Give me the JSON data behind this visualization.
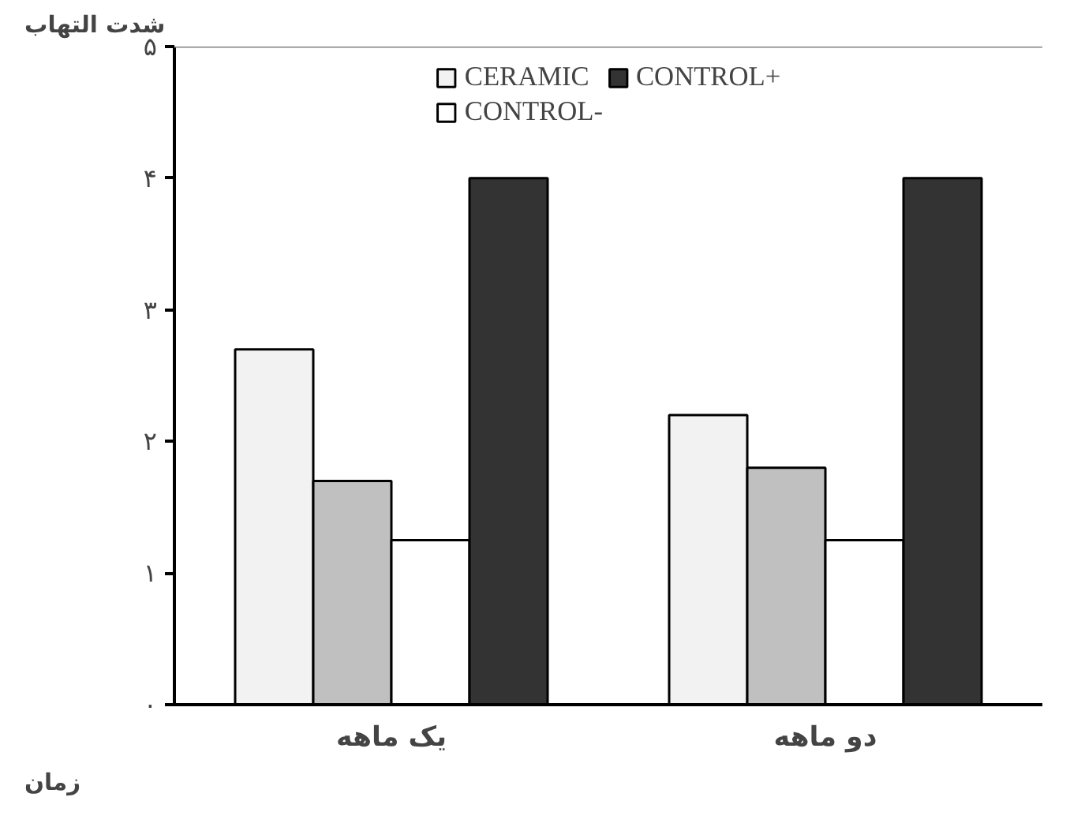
{
  "chart_data": {
    "type": "bar",
    "xlabel": "زمان",
    "ylabel": "شدت التهاب",
    "categories": [
      "یک ماهه",
      "دو ماهه"
    ],
    "series": [
      {
        "name": "CERAMIC",
        "color": "#f2f2f2",
        "values": [
          2.7,
          2.2
        ]
      },
      {
        "color": "#c0c0c0",
        "values": [
          1.7,
          1.8
        ]
      },
      {
        "name": "CONTROL-",
        "color": "#ffffff",
        "values": [
          1.25,
          1.25
        ]
      },
      {
        "name": "CONTROL+",
        "color": "#333333",
        "values": [
          4,
          4
        ]
      }
    ],
    "ylim": [
      0,
      5
    ],
    "yticks": [
      {
        "value": 0,
        "label": "۰"
      },
      {
        "value": 1,
        "label": "۱"
      },
      {
        "value": 2,
        "label": "۲"
      },
      {
        "value": 3,
        "label": "۳"
      },
      {
        "value": 4,
        "label": "۴"
      },
      {
        "value": 5,
        "label": "۵"
      }
    ],
    "ref_lines": [
      {
        "axis": "y",
        "value": 5,
        "color": "#808080"
      }
    ],
    "legend": "top"
  }
}
